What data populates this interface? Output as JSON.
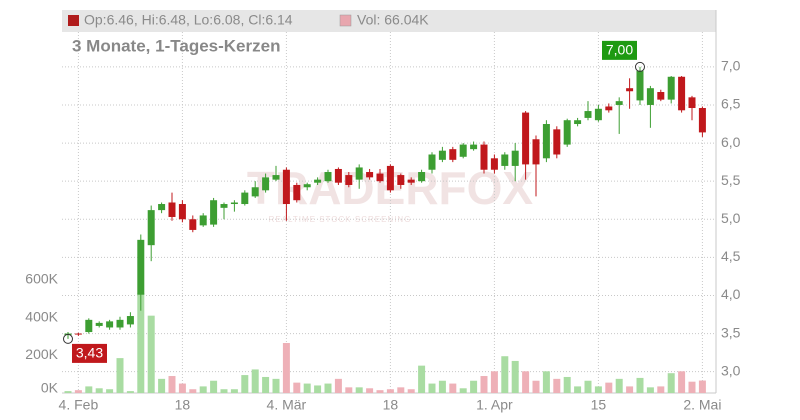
{
  "chart_data": [
    {
      "type": "candlestick",
      "title": "3 Monate, 1-Tages-Kerzen",
      "header": "Op:6.46, Hi:6.48, Lo:6.08, Cl:6.14",
      "header_color": "#b01c1c",
      "watermark": {
        "title": "TRADERFOX",
        "subtitle": "REALTIME STOCK SCREENING"
      },
      "categories": [
        null,
        "4. Feb",
        null,
        null,
        null,
        null,
        null,
        null,
        null,
        null,
        null,
        "18",
        null,
        null,
        null,
        null,
        null,
        null,
        null,
        null,
        null,
        "4. Mär",
        null,
        null,
        null,
        null,
        null,
        null,
        null,
        null,
        null,
        "18",
        null,
        null,
        null,
        null,
        null,
        null,
        null,
        null,
        null,
        "1. Apr",
        null,
        null,
        null,
        null,
        null,
        null,
        null,
        null,
        null,
        "15",
        null,
        null,
        null,
        null,
        null,
        null,
        null,
        null,
        null,
        "2. Mai"
      ],
      "open": [
        3.48,
        3.5,
        3.52,
        3.6,
        3.58,
        3.58,
        3.62,
        4.01,
        4.66,
        5.12,
        5.22,
        5.2,
        5.0,
        4.92,
        4.93,
        5.15,
        5.2,
        5.2,
        5.3,
        5.38,
        5.52,
        5.65,
        5.45,
        5.42,
        5.48,
        5.5,
        5.66,
        5.58,
        5.52,
        5.62,
        5.6,
        5.7,
        5.58,
        5.52,
        5.5,
        5.65,
        5.78,
        5.92,
        5.82,
        5.92,
        5.98,
        5.8,
        5.7,
        5.7,
        6.4,
        6.05,
        5.8,
        6.18,
        5.98,
        6.25,
        6.33,
        6.3,
        6.48,
        6.5,
        6.72,
        6.56,
        6.5,
        6.67,
        6.57,
        6.87,
        6.6,
        6.46
      ],
      "high": [
        3.52,
        3.51,
        3.7,
        3.66,
        3.68,
        3.72,
        3.78,
        4.8,
        5.18,
        5.22,
        5.35,
        5.25,
        5.05,
        5.08,
        5.28,
        5.22,
        5.25,
        5.38,
        5.5,
        5.6,
        5.7,
        5.68,
        5.48,
        5.48,
        5.55,
        5.65,
        5.68,
        5.62,
        5.72,
        5.66,
        5.66,
        5.72,
        5.6,
        5.55,
        5.65,
        5.88,
        5.95,
        5.95,
        6.0,
        6.02,
        6.02,
        5.85,
        5.88,
        6.0,
        6.42,
        6.1,
        6.3,
        6.22,
        6.32,
        6.33,
        6.55,
        6.5,
        6.52,
        6.6,
        6.85,
        7.0,
        6.75,
        6.7,
        6.88,
        6.88,
        6.62,
        6.48
      ],
      "low": [
        3.43,
        3.47,
        3.5,
        3.58,
        3.55,
        3.55,
        3.58,
        3.8,
        4.45,
        5.08,
        4.98,
        4.96,
        4.83,
        4.9,
        4.9,
        5.0,
        5.1,
        5.18,
        5.28,
        5.35,
        5.5,
        4.98,
        5.22,
        5.38,
        5.45,
        5.48,
        5.45,
        5.42,
        5.4,
        5.52,
        5.48,
        5.35,
        5.4,
        5.45,
        5.48,
        5.6,
        5.75,
        5.75,
        5.8,
        5.9,
        5.6,
        5.6,
        5.65,
        5.5,
        5.52,
        5.3,
        5.75,
        5.8,
        5.95,
        6.22,
        6.3,
        6.28,
        6.4,
        6.12,
        6.45,
        6.5,
        6.2,
        6.55,
        6.52,
        6.4,
        6.3,
        6.08
      ],
      "close": [
        3.5,
        3.49,
        3.68,
        3.64,
        3.66,
        3.68,
        3.73,
        4.73,
        5.12,
        5.2,
        5.03,
        5.0,
        4.86,
        5.05,
        5.25,
        5.2,
        5.22,
        5.35,
        5.42,
        5.55,
        5.58,
        5.2,
        5.25,
        5.46,
        5.52,
        5.62,
        5.48,
        5.45,
        5.68,
        5.55,
        5.5,
        5.38,
        5.45,
        5.48,
        5.62,
        5.85,
        5.9,
        5.78,
        5.98,
        5.98,
        5.65,
        5.65,
        5.85,
        5.9,
        5.72,
        5.72,
        6.25,
        5.85,
        6.3,
        6.3,
        6.42,
        6.45,
        6.43,
        6.55,
        6.68,
        6.95,
        6.72,
        6.57,
        6.87,
        6.43,
        6.46,
        6.14
      ],
      "up_color": "#3d9e32",
      "down_color": "#c0181c",
      "ylim": [
        2.72,
        7.72
      ],
      "yticks": [
        {
          "value": 3,
          "label": "3,0"
        },
        {
          "value": 3.5,
          "label": "3,5"
        },
        {
          "value": 4,
          "label": "4,0"
        },
        {
          "value": 4.5,
          "label": "4,5"
        },
        {
          "value": 5,
          "label": "5,0"
        },
        {
          "value": 5.5,
          "label": "5,5"
        },
        {
          "value": 6,
          "label": "6,0"
        },
        {
          "value": 6.5,
          "label": "6,5"
        },
        {
          "value": 7,
          "label": "7,0"
        }
      ],
      "grid": true,
      "annotations": [
        {
          "text": "7,00",
          "value": 7,
          "color": "#1e9a12",
          "place": "above"
        },
        {
          "text": "3,43",
          "value": 3.43,
          "color": "#c0181c",
          "place": "below"
        }
      ]
    },
    {
      "type": "bar",
      "header": "Vol: 66.04K",
      "header_color": "#e8a6ae",
      "values": [
        10000,
        15000,
        35000,
        25000,
        20000,
        185000,
        10000,
        530000,
        410000,
        75000,
        90000,
        50000,
        20000,
        35000,
        65000,
        20000,
        20000,
        95000,
        125000,
        85000,
        75000,
        265000,
        55000,
        50000,
        40000,
        50000,
        75000,
        30000,
        30000,
        25000,
        15000,
        20000,
        30000,
        20000,
        145000,
        50000,
        65000,
        50000,
        25000,
        65000,
        90000,
        115000,
        195000,
        170000,
        115000,
        65000,
        115000,
        75000,
        85000,
        35000,
        65000,
        35000,
        55000,
        75000,
        35000,
        80000,
        30000,
        35000,
        105000,
        115000,
        60000,
        66040
      ],
      "up_color": "#a9dca2",
      "down_color": "#eeb0b7",
      "ylim": [
        0,
        2020000
      ],
      "yticks": [
        {
          "value": 0,
          "label": "0K"
        },
        {
          "value": 200000,
          "label": "200K"
        },
        {
          "value": 400000,
          "label": "400K"
        },
        {
          "value": 600000,
          "label": "600K"
        }
      ]
    }
  ]
}
